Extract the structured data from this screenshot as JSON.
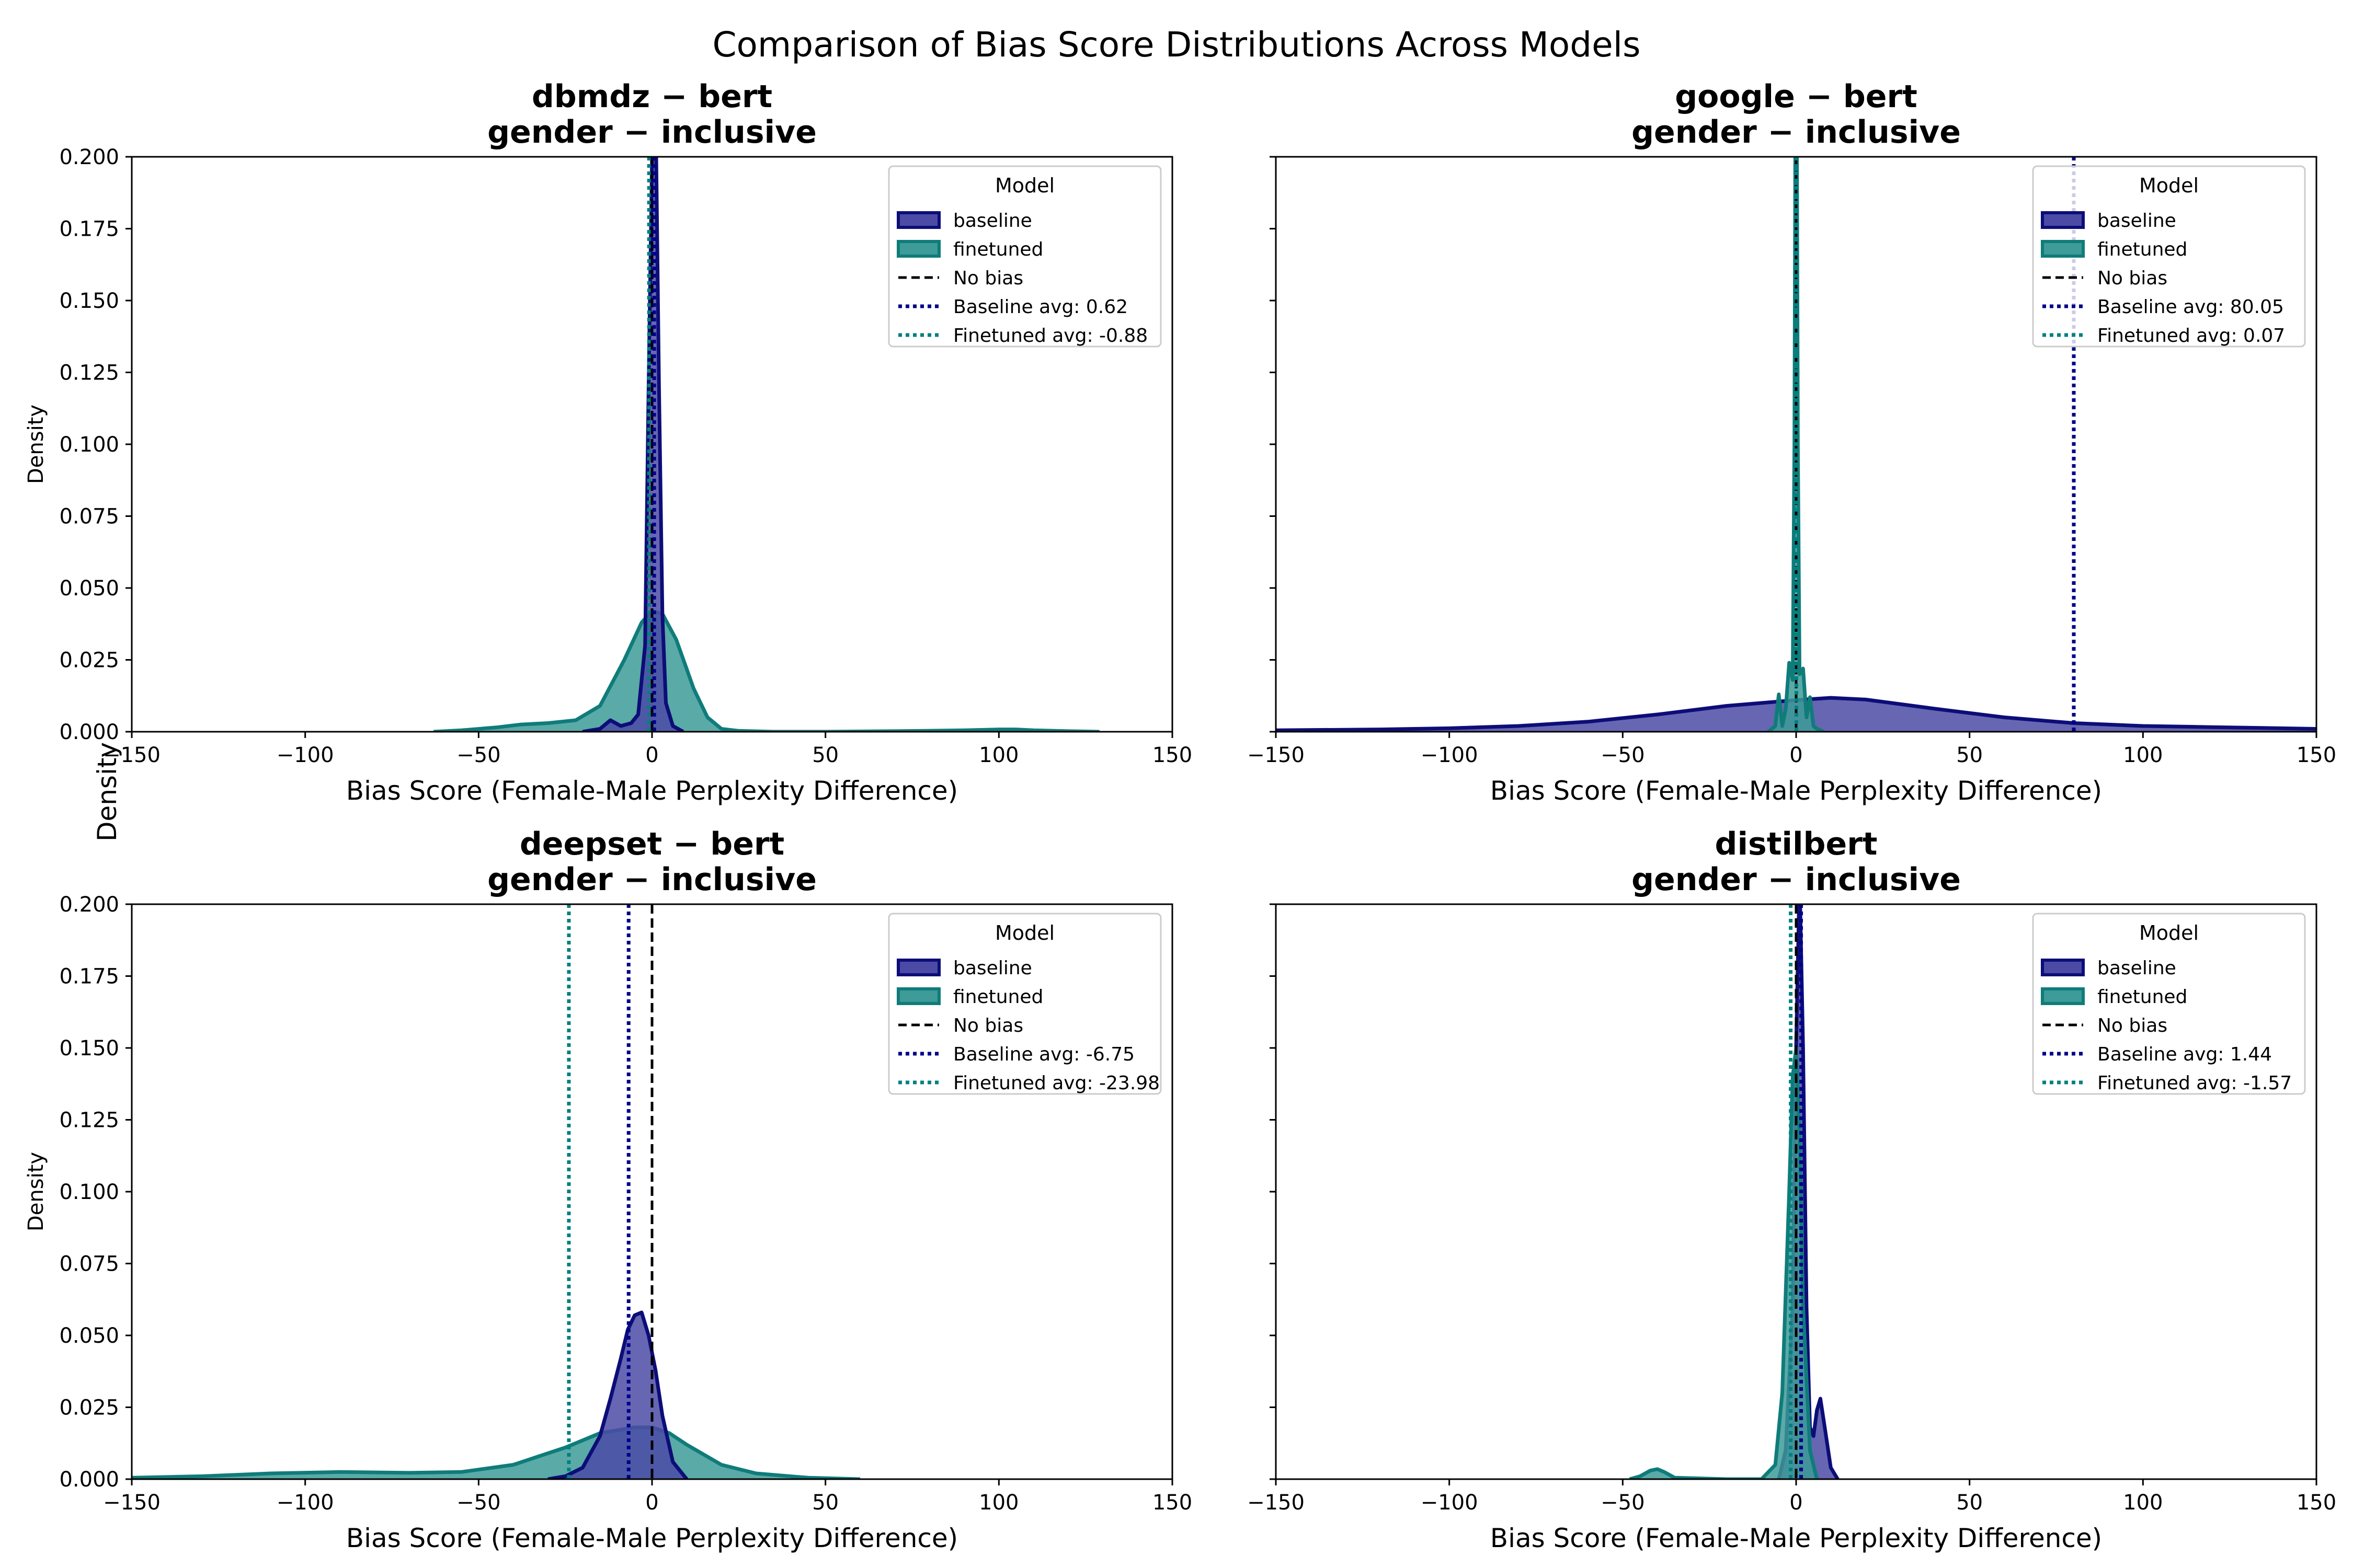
{
  "figure": {
    "title": "Comparison of Bias Score Distributions Across Models",
    "shared_ylabel": "Density"
  },
  "legend": {
    "title": "Model",
    "baseline_label": "baseline",
    "finetuned_label": "finetuned",
    "nobias_label": "No bias"
  },
  "colors": {
    "baseline_fill": "#4b4ba6",
    "baseline_line": "#0d0d78",
    "finetuned_fill": "#3d9b98",
    "finetuned_line": "#0f7c7a",
    "baseline_avg": "#00008b",
    "finetuned_avg": "#008080",
    "no_bias": "#000000"
  },
  "chart_data": [
    {
      "type": "area",
      "title_line1": "dbmdz − bert",
      "title_line2": "gender − inclusive",
      "xlabel": "Bias Score (Female-Male Perplexity Difference)",
      "ylabel": "Density",
      "xlim": [
        -150,
        150
      ],
      "ylim": [
        0,
        0.2
      ],
      "xticks": [
        -150,
        -100,
        -50,
        0,
        50,
        100,
        150
      ],
      "yticks": [
        0.0,
        0.025,
        0.05,
        0.075,
        0.1,
        0.125,
        0.15,
        0.175,
        0.2
      ],
      "show_yticklabels": true,
      "legend_position": "top-right",
      "baseline_avg": 0.62,
      "finetuned_avg": -0.88,
      "baseline_avg_label": "Baseline avg: 0.62",
      "finetuned_avg_label": "Finetuned avg: -0.88",
      "series": [
        {
          "name": "finetuned",
          "x": [
            -63,
            -55,
            -45,
            -38,
            -30,
            -22,
            -15,
            -8,
            -3,
            0,
            3,
            7,
            12,
            16,
            20,
            25,
            35,
            50,
            70,
            90,
            100,
            105,
            110,
            120,
            129
          ],
          "y": [
            0,
            0.0005,
            0.0015,
            0.0025,
            0.003,
            0.004,
            0.009,
            0.025,
            0.038,
            0.042,
            0.041,
            0.032,
            0.015,
            0.005,
            0.001,
            0.0003,
            0,
            0,
            0.0002,
            0.0005,
            0.0008,
            0.0008,
            0.0005,
            0.0002,
            0
          ]
        },
        {
          "name": "baseline",
          "x": [
            -20,
            -15,
            -12,
            -9,
            -6,
            -4,
            -2,
            -1,
            0,
            0.6,
            1.2,
            2,
            3,
            4,
            6,
            9
          ],
          "y": [
            0,
            0.001,
            0.004,
            0.002,
            0.003,
            0.006,
            0.03,
            0.12,
            0.2,
            0.26,
            0.2,
            0.12,
            0.04,
            0.01,
            0.002,
            0
          ]
        }
      ]
    },
    {
      "type": "area",
      "title_line1": "google − bert",
      "title_line2": "gender − inclusive",
      "xlabel": "Bias Score (Female-Male Perplexity Difference)",
      "ylabel": "",
      "xlim": [
        -150,
        150
      ],
      "ylim": [
        0,
        0.2
      ],
      "xticks": [
        -150,
        -100,
        -50,
        0,
        50,
        100,
        150
      ],
      "yticks": [
        0.0,
        0.025,
        0.05,
        0.075,
        0.1,
        0.125,
        0.15,
        0.175,
        0.2
      ],
      "show_yticklabels": false,
      "legend_position": "top-right",
      "baseline_avg": 80.05,
      "finetuned_avg": 0.07,
      "baseline_avg_label": "Baseline avg: 80.05",
      "finetuned_avg_label": "Finetuned avg: 0.07",
      "series": [
        {
          "name": "baseline",
          "x": [
            -150,
            -120,
            -100,
            -80,
            -60,
            -40,
            -20,
            0,
            10,
            20,
            40,
            60,
            80,
            100,
            120,
            140,
            150
          ],
          "y": [
            0.0005,
            0.0008,
            0.0012,
            0.002,
            0.0035,
            0.006,
            0.009,
            0.011,
            0.0118,
            0.0112,
            0.008,
            0.005,
            0.003,
            0.002,
            0.0016,
            0.0012,
            0.001
          ]
        },
        {
          "name": "finetuned",
          "x": [
            -8,
            -6,
            -5,
            -4,
            -3,
            -2,
            -1,
            -0.5,
            0,
            0.5,
            1,
            2,
            3,
            4,
            5,
            6,
            8
          ],
          "y": [
            0,
            0.002,
            0.013,
            0.002,
            0.008,
            0.024,
            0.018,
            0.1,
            0.3,
            0.1,
            0.02,
            0.022,
            0.005,
            0.012,
            0.002,
            0.001,
            0
          ]
        }
      ]
    },
    {
      "type": "area",
      "title_line1": "deepset − bert",
      "title_line2": "gender − inclusive",
      "xlabel": "Bias Score (Female-Male Perplexity Difference)",
      "ylabel": "Density",
      "xlim": [
        -150,
        150
      ],
      "ylim": [
        0,
        0.2
      ],
      "xticks": [
        -150,
        -100,
        -50,
        0,
        50,
        100,
        150
      ],
      "yticks": [
        0.0,
        0.025,
        0.05,
        0.075,
        0.1,
        0.125,
        0.15,
        0.175,
        0.2
      ],
      "show_yticklabels": true,
      "legend_position": "top-right",
      "baseline_avg": -6.75,
      "finetuned_avg": -23.98,
      "baseline_avg_label": "Baseline avg: -6.75",
      "finetuned_avg_label": "Finetuned avg: -23.98",
      "series": [
        {
          "name": "finetuned",
          "x": [
            -150,
            -130,
            -110,
            -90,
            -70,
            -55,
            -40,
            -25,
            -15,
            -5,
            0,
            5,
            10,
            20,
            30,
            45,
            60
          ],
          "y": [
            0.0005,
            0.001,
            0.002,
            0.0025,
            0.0022,
            0.0025,
            0.005,
            0.011,
            0.016,
            0.018,
            0.018,
            0.016,
            0.012,
            0.005,
            0.002,
            0.0005,
            0
          ]
        },
        {
          "name": "baseline",
          "x": [
            -30,
            -25,
            -20,
            -15,
            -12,
            -9,
            -7,
            -5,
            -3,
            -1,
            1,
            3,
            6,
            10
          ],
          "y": [
            0,
            0.001,
            0.004,
            0.015,
            0.028,
            0.042,
            0.052,
            0.057,
            0.058,
            0.05,
            0.038,
            0.022,
            0.006,
            0
          ]
        }
      ]
    },
    {
      "type": "area",
      "title_line1": "distilbert",
      "title_line2": "gender − inclusive",
      "xlabel": "Bias Score (Female-Male Perplexity Difference)",
      "ylabel": "",
      "xlim": [
        -150,
        150
      ],
      "ylim": [
        0,
        0.2
      ],
      "xticks": [
        -150,
        -100,
        -50,
        0,
        50,
        100,
        150
      ],
      "yticks": [
        0.0,
        0.025,
        0.05,
        0.075,
        0.1,
        0.125,
        0.15,
        0.175,
        0.2
      ],
      "show_yticklabels": false,
      "legend_position": "top-right",
      "baseline_avg": 1.44,
      "finetuned_avg": -1.57,
      "baseline_avg_label": "Baseline avg: 1.44",
      "finetuned_avg_label": "Finetuned avg: -1.57",
      "series": [
        {
          "name": "baseline",
          "x": [
            -5,
            -3,
            -1,
            0,
            1,
            2,
            3,
            4,
            5,
            6,
            7,
            8,
            10,
            12
          ],
          "y": [
            0,
            0.01,
            0.06,
            0.15,
            0.21,
            0.15,
            0.06,
            0.018,
            0.015,
            0.024,
            0.028,
            0.02,
            0.004,
            0
          ]
        },
        {
          "name": "finetuned",
          "x": [
            -48,
            -45,
            -42,
            -40,
            -38,
            -35,
            -20,
            -10,
            -6,
            -4,
            -2,
            -1,
            0,
            1,
            2,
            4,
            6
          ],
          "y": [
            0,
            0.001,
            0.003,
            0.0035,
            0.0025,
            0.0005,
            0,
            0,
            0.005,
            0.03,
            0.1,
            0.14,
            0.15,
            0.12,
            0.06,
            0.01,
            0
          ]
        }
      ]
    }
  ]
}
